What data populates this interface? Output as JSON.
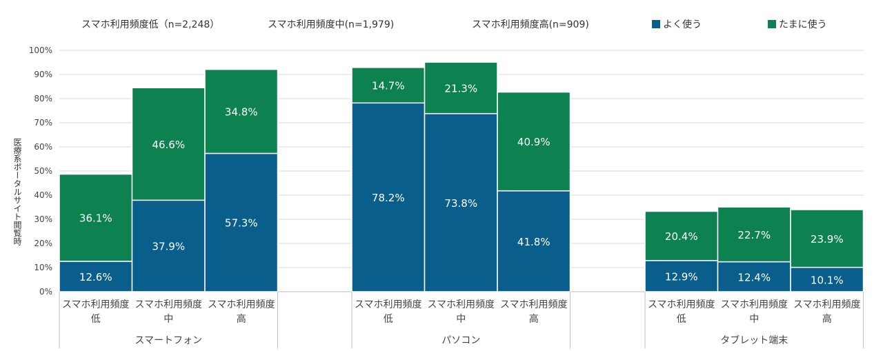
{
  "header": {
    "labels": [
      "スマホ利用頻度低（n=2,248）",
      "スマホ利用頻度中(n=1,979)",
      "スマホ利用頻度高(n=909)"
    ]
  },
  "legend": [
    {
      "label": "よく使う",
      "color": "#0a5e8c"
    },
    {
      "label": "たまに使う",
      "color": "#0d8150"
    }
  ],
  "chart_data": {
    "type": "bar",
    "stacked": true,
    "ylabel": "医療系ポータルサイト閲覧時",
    "ylim": [
      0,
      100
    ],
    "yticks": [
      "0%",
      "10%",
      "20%",
      "30%",
      "40%",
      "50%",
      "60%",
      "70%",
      "80%",
      "90%",
      "100%"
    ],
    "grid": true,
    "legend_position": "top-right",
    "groups": [
      "スマートフォン",
      "パソコン",
      "タブレット端末"
    ],
    "subcategory_lines": [
      [
        "スマホ利用頻度",
        "低"
      ],
      [
        "スマホ利用頻度",
        "中"
      ],
      [
        "スマホ利用頻度",
        "高"
      ]
    ],
    "series": [
      {
        "name": "よく使う",
        "color": "#0a5e8c",
        "values": [
          [
            12.6,
            37.9,
            57.3
          ],
          [
            78.2,
            73.8,
            41.8
          ],
          [
            12.9,
            12.4,
            10.1
          ]
        ],
        "labels": [
          [
            "12.6%",
            "37.9%",
            "57.3%"
          ],
          [
            "78.2%",
            "73.8%",
            "41.8%"
          ],
          [
            "12.9%",
            "12.4%",
            "10.1%"
          ]
        ]
      },
      {
        "name": "たまに使う",
        "color": "#0d8150",
        "values": [
          [
            36.1,
            46.6,
            34.8
          ],
          [
            14.7,
            21.3,
            40.9
          ],
          [
            20.4,
            22.7,
            23.9
          ]
        ],
        "labels": [
          [
            "36.1%",
            "46.6%",
            "34.8%"
          ],
          [
            "14.7%",
            "21.3%",
            "40.9%"
          ],
          [
            "20.4%",
            "22.7%",
            "23.9%"
          ]
        ]
      }
    ]
  }
}
